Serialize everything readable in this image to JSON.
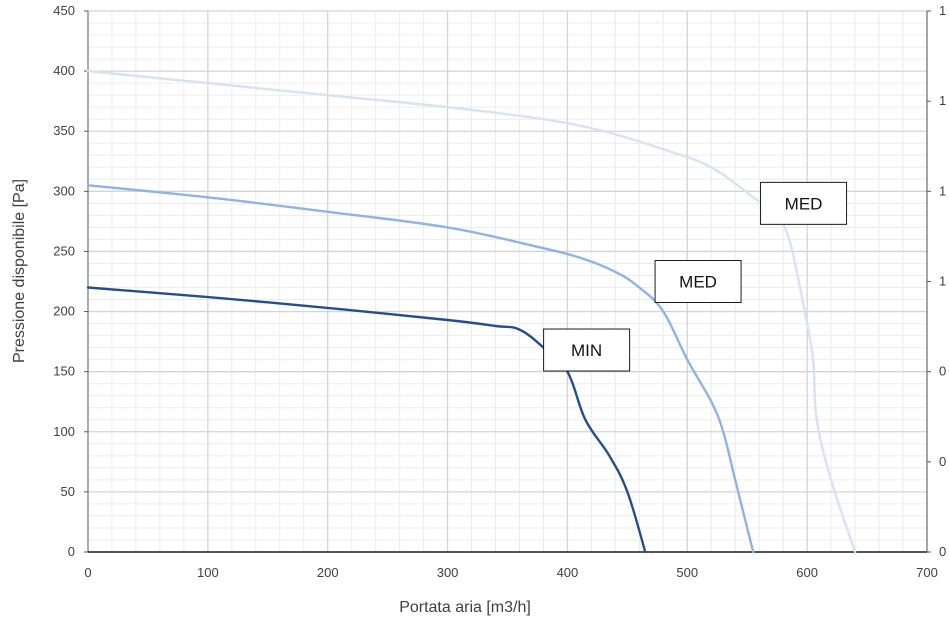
{
  "chart_data": {
    "type": "line",
    "xlabel": "Portata aria [m3/h]",
    "ylabel": "Pressione disponibile [Pa]",
    "xlim": [
      0,
      700
    ],
    "ylim": [
      0,
      450
    ],
    "x_ticks": [
      "0",
      "100",
      "200",
      "300",
      "400",
      "500",
      "600",
      "700"
    ],
    "y_ticks": [
      "0",
      "50",
      "100",
      "150",
      "200",
      "250",
      "300",
      "350",
      "400",
      "450"
    ],
    "right_ticks": [
      "0",
      "0",
      "0",
      "1",
      "1",
      "1",
      "1"
    ],
    "grid": true,
    "legend": "none",
    "series": [
      {
        "color": "#d6e3f3",
        "points": [
          [
            0,
            400
          ],
          [
            100,
            390
          ],
          [
            200,
            380
          ],
          [
            300,
            370
          ],
          [
            380,
            360
          ],
          [
            430,
            350
          ],
          [
            480,
            335
          ],
          [
            520,
            320
          ],
          [
            555,
            295
          ],
          [
            575,
            280
          ],
          [
            585,
            260
          ],
          [
            592,
            230
          ],
          [
            598,
            200
          ],
          [
            605,
            160
          ],
          [
            608,
            110
          ],
          [
            620,
            60
          ],
          [
            640,
            0
          ]
        ]
      },
      {
        "color": "#8fb4e3",
        "points": [
          [
            0,
            305
          ],
          [
            100,
            295
          ],
          [
            200,
            283
          ],
          [
            300,
            270
          ],
          [
            370,
            255
          ],
          [
            410,
            245
          ],
          [
            440,
            233
          ],
          [
            460,
            220
          ],
          [
            480,
            200
          ],
          [
            500,
            160
          ],
          [
            520,
            125
          ],
          [
            530,
            100
          ],
          [
            540,
            60
          ],
          [
            555,
            0
          ]
        ]
      },
      {
        "color": "#264f8a",
        "points": [
          [
            0,
            220
          ],
          [
            100,
            212
          ],
          [
            200,
            203
          ],
          [
            300,
            193
          ],
          [
            340,
            188
          ],
          [
            360,
            185
          ],
          [
            380,
            170
          ],
          [
            400,
            150
          ],
          [
            415,
            110
          ],
          [
            435,
            80
          ],
          [
            450,
            50
          ],
          [
            465,
            0
          ]
        ]
      }
    ],
    "annotations": [
      {
        "text": "MED",
        "x": 597,
        "y": 290
      },
      {
        "text": "MED",
        "x": 509,
        "y": 225
      },
      {
        "text": "MIN",
        "x": 416,
        "y": 168
      }
    ]
  }
}
